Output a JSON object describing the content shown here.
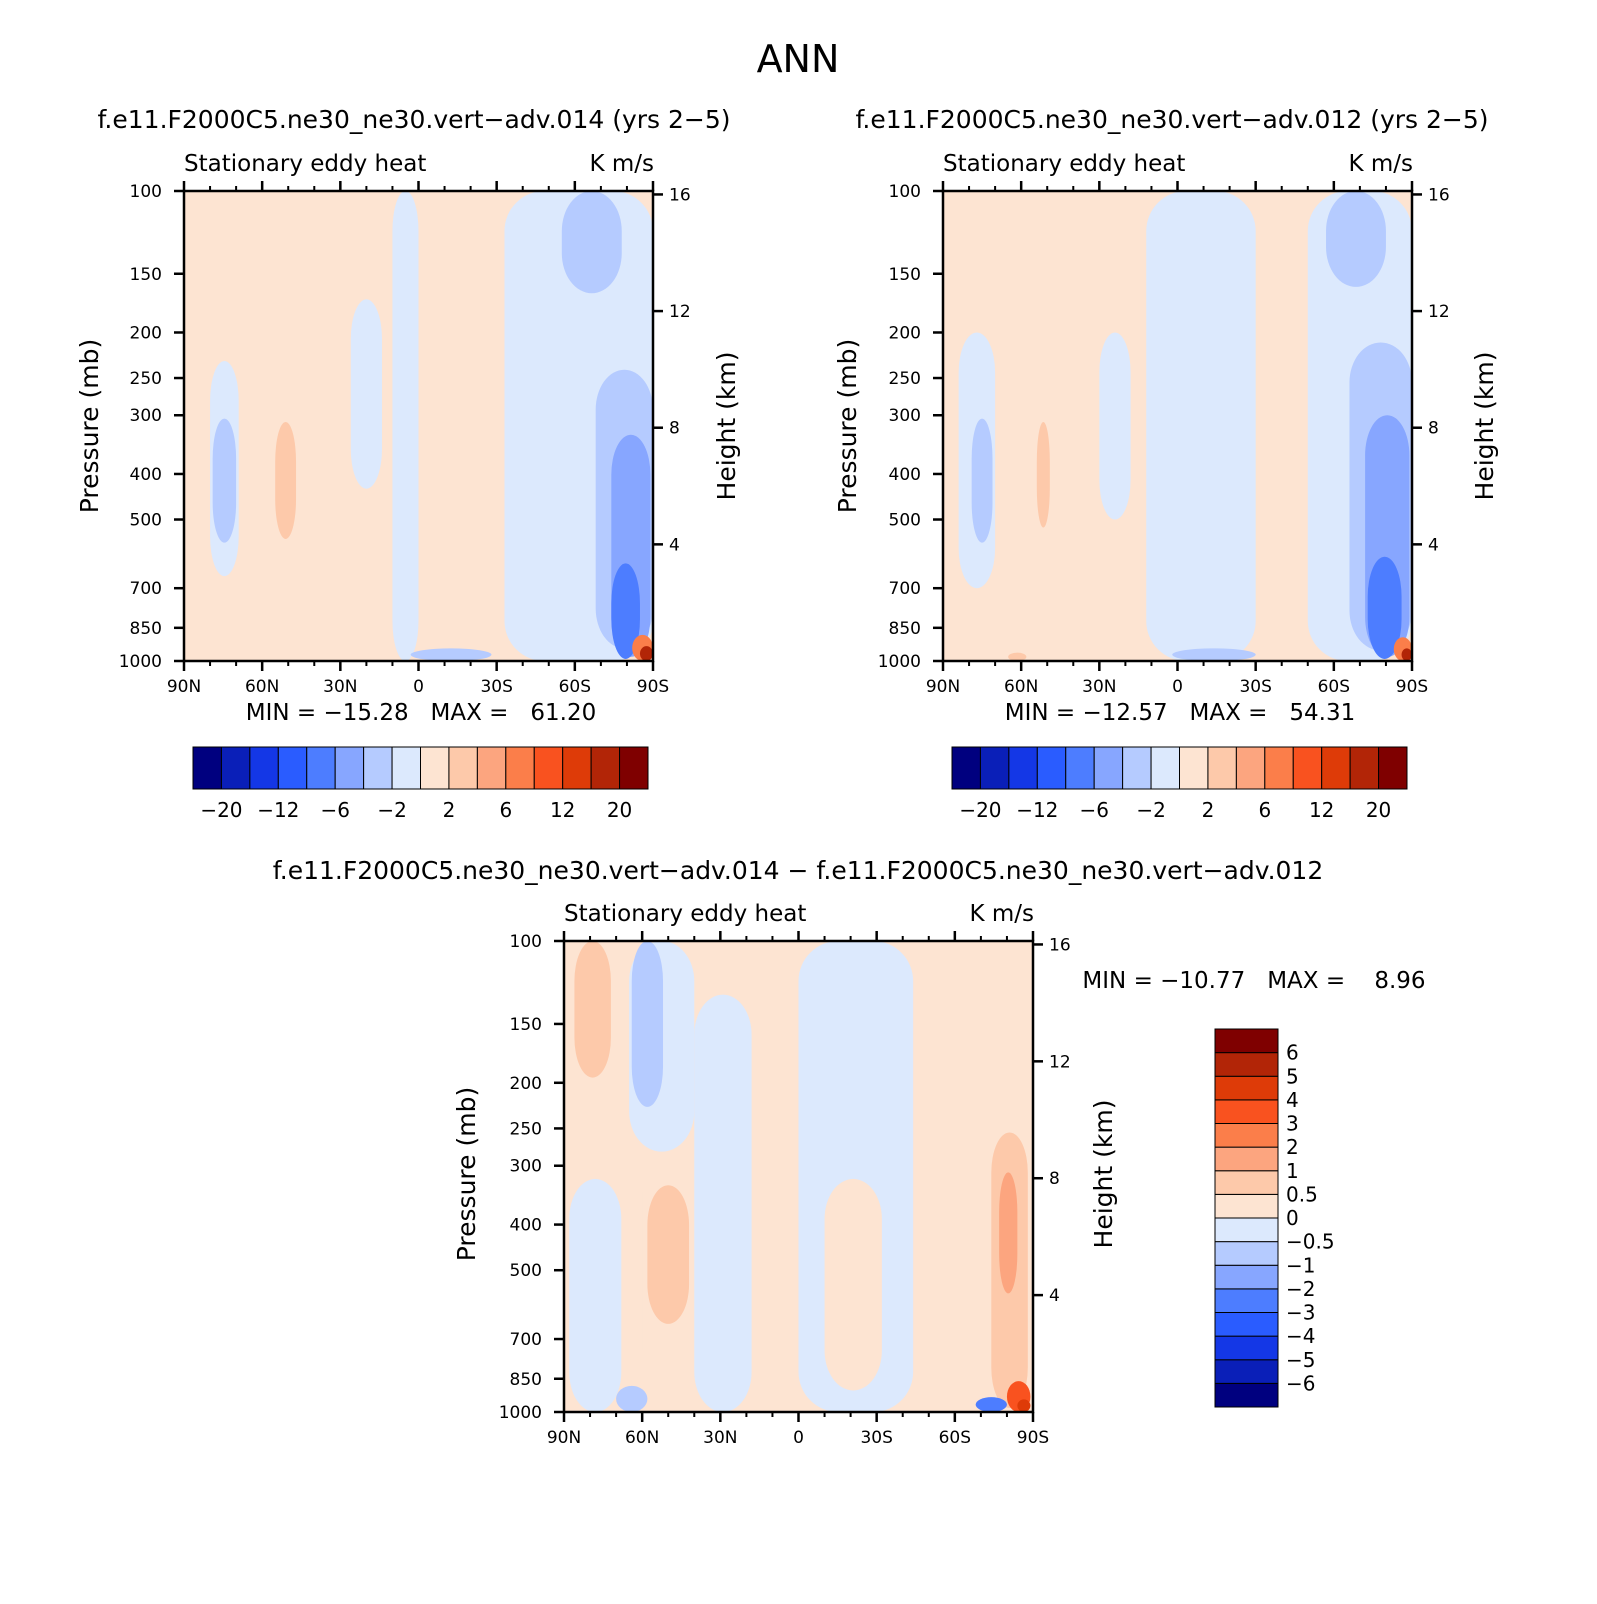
{
  "figure": {
    "title": "ANN"
  },
  "chart_data": [
    {
      "type": "heatmap",
      "title": "f.e11.F2000C5.ne30_ne30.vert−adv.014 (yrs 2−5)",
      "left_string": "Stationary eddy heat",
      "right_string": "K m/s",
      "xlabel": "",
      "ylabel": "Pressure (mb)",
      "y2label": "Height (km)",
      "x_ticks": [
        "90N",
        "60N",
        "30N",
        "0",
        "30S",
        "60S",
        "90S"
      ],
      "y_ticks": [
        "100",
        "150",
        "200",
        "250",
        "300",
        "400",
        "500",
        "700",
        "850",
        "1000"
      ],
      "y_tick_values": [
        100,
        150,
        200,
        250,
        300,
        400,
        500,
        700,
        850,
        1000
      ],
      "y2_ticks": [
        "16",
        "12",
        "8",
        "4"
      ],
      "y2_tick_values": [
        16,
        12,
        8,
        4
      ],
      "ylim": [
        1000,
        100
      ],
      "xlim": [
        90,
        -90
      ],
      "stats": "MIN = −15.28   MAX =   61.20",
      "min": -15.28,
      "max": 61.2,
      "colorbar": {
        "orientation": "horizontal",
        "labels": [
          "−20",
          "−12",
          "−6",
          "−2",
          "2",
          "6",
          "12",
          "20"
        ],
        "levels": [
          -20,
          -16,
          -12,
          -8,
          -6,
          -4,
          -2,
          -1,
          1,
          2,
          4,
          6,
          8,
          12,
          16,
          20
        ],
        "colors": [
          "#00007f",
          "#0a1fb8",
          "#1437e6",
          "#2a5cff",
          "#4d7dff",
          "#87a6ff",
          "#b5cbff",
          "#dce9fd",
          "#fde4d2",
          "#fdc9aa",
          "#fca57f",
          "#fb7e4a",
          "#f9521f",
          "#de3b08",
          "#b22507",
          "#7f0000"
        ]
      },
      "features": [
        {
          "kind": "pos",
          "level": 1,
          "lat1": 72,
          "lat2": 66,
          "p1": 100,
          "p2": 1000
        },
        {
          "kind": "pos",
          "level": 1,
          "lat1": 62,
          "lat2": 40,
          "p1": 200,
          "p2": 1000
        },
        {
          "kind": "pos",
          "level": 2,
          "lat1": 55,
          "lat2": 47,
          "p1": 310,
          "p2": 550
        },
        {
          "kind": "pos",
          "level": 1,
          "lat1": 32,
          "lat2": 28,
          "p1": 155,
          "p2": 180
        },
        {
          "kind": "neg",
          "level": 1,
          "lat1": 80,
          "lat2": 69,
          "p1": 230,
          "p2": 660
        },
        {
          "kind": "neg",
          "level": 2,
          "lat1": 79,
          "lat2": 70,
          "p1": 305,
          "p2": 560
        },
        {
          "kind": "neg",
          "level": 1,
          "lat1": 10,
          "lat2": 0,
          "p1": 100,
          "p2": 1000
        },
        {
          "kind": "neg",
          "level": 1,
          "lat1": 26,
          "lat2": 14,
          "p1": 170,
          "p2": 430
        },
        {
          "kind": "neg",
          "level": 1,
          "lat1": -33,
          "lat2": -90,
          "p1": 100,
          "p2": 1000
        },
        {
          "kind": "neg",
          "level": 2,
          "lat1": -55,
          "lat2": -78,
          "p1": 100,
          "p2": 165
        },
        {
          "kind": "neg",
          "level": 2,
          "lat1": -68,
          "lat2": -90,
          "p1": 240,
          "p2": 940
        },
        {
          "kind": "neg",
          "level": 3,
          "lat1": -74,
          "lat2": -89,
          "p1": 330,
          "p2": 980
        },
        {
          "kind": "neg",
          "level": 4,
          "lat1": -74,
          "lat2": -85,
          "p1": 620,
          "p2": 990
        },
        {
          "kind": "neg",
          "level": 2,
          "lat1": 3,
          "lat2": -28,
          "p1": 940,
          "p2": 1000
        },
        {
          "kind": "pos",
          "level": 4,
          "lat1": -82,
          "lat2": -90,
          "p1": 880,
          "p2": 1000
        },
        {
          "kind": "pos",
          "level": 7,
          "lat1": -85,
          "lat2": -90,
          "p1": 930,
          "p2": 1000
        }
      ]
    },
    {
      "type": "heatmap",
      "title": "f.e11.F2000C5.ne30_ne30.vert−adv.012 (yrs 2−5)",
      "left_string": "Stationary eddy heat",
      "right_string": "K m/s",
      "xlabel": "",
      "ylabel": "Pressure (mb)",
      "y2label": "Height (km)",
      "x_ticks": [
        "90N",
        "60N",
        "30N",
        "0",
        "30S",
        "60S",
        "90S"
      ],
      "y_ticks": [
        "100",
        "150",
        "200",
        "250",
        "300",
        "400",
        "500",
        "700",
        "850",
        "1000"
      ],
      "y_tick_values": [
        100,
        150,
        200,
        250,
        300,
        400,
        500,
        700,
        850,
        1000
      ],
      "y2_ticks": [
        "16",
        "12",
        "8",
        "4"
      ],
      "y2_tick_values": [
        16,
        12,
        8,
        4
      ],
      "ylim": [
        1000,
        100
      ],
      "xlim": [
        90,
        -90
      ],
      "stats": "MIN = −12.57   MAX =   54.31",
      "min": -12.57,
      "max": 54.31,
      "colorbar": {
        "orientation": "horizontal",
        "labels": [
          "−20",
          "−12",
          "−6",
          "−2",
          "2",
          "6",
          "12",
          "20"
        ],
        "levels": [
          -20,
          -16,
          -12,
          -8,
          -6,
          -4,
          -2,
          -1,
          1,
          2,
          4,
          6,
          8,
          12,
          16,
          20
        ],
        "colors": [
          "#00007f",
          "#0a1fb8",
          "#1437e6",
          "#2a5cff",
          "#4d7dff",
          "#87a6ff",
          "#b5cbff",
          "#dce9fd",
          "#fde4d2",
          "#fdc9aa",
          "#fca57f",
          "#fb7e4a",
          "#f9521f",
          "#de3b08",
          "#b22507",
          "#7f0000"
        ]
      },
      "features": [
        {
          "kind": "pos",
          "level": 1,
          "lat1": 73,
          "lat2": 66,
          "p1": 100,
          "p2": 1000
        },
        {
          "kind": "pos",
          "level": 1,
          "lat1": 62,
          "lat2": 42,
          "p1": 170,
          "p2": 1000
        },
        {
          "kind": "pos",
          "level": 2,
          "lat1": 54,
          "lat2": 49,
          "p1": 310,
          "p2": 520
        },
        {
          "kind": "pos",
          "level": 1,
          "lat1": 32,
          "lat2": 28,
          "p1": 155,
          "p2": 190
        },
        {
          "kind": "neg",
          "level": 1,
          "lat1": 84,
          "lat2": 70,
          "p1": 200,
          "p2": 700
        },
        {
          "kind": "neg",
          "level": 2,
          "lat1": 79,
          "lat2": 71,
          "p1": 305,
          "p2": 560
        },
        {
          "kind": "neg",
          "level": 1,
          "lat1": 30,
          "lat2": 18,
          "p1": 200,
          "p2": 500
        },
        {
          "kind": "neg",
          "level": 1,
          "lat1": 12,
          "lat2": -30,
          "p1": 100,
          "p2": 1000
        },
        {
          "kind": "neg",
          "level": 1,
          "lat1": -50,
          "lat2": -90,
          "p1": 100,
          "p2": 1000
        },
        {
          "kind": "neg",
          "level": 2,
          "lat1": -57,
          "lat2": -80,
          "p1": 100,
          "p2": 160
        },
        {
          "kind": "neg",
          "level": 2,
          "lat1": -66,
          "lat2": -90,
          "p1": 210,
          "p2": 950
        },
        {
          "kind": "neg",
          "level": 3,
          "lat1": -72,
          "lat2": -89,
          "p1": 300,
          "p2": 980
        },
        {
          "kind": "neg",
          "level": 4,
          "lat1": -73,
          "lat2": -86,
          "p1": 600,
          "p2": 990
        },
        {
          "kind": "neg",
          "level": 2,
          "lat1": 2,
          "lat2": -30,
          "p1": 940,
          "p2": 1000
        },
        {
          "kind": "pos",
          "level": 2,
          "lat1": 65,
          "lat2": 58,
          "p1": 960,
          "p2": 1000
        },
        {
          "kind": "pos",
          "level": 4,
          "lat1": -83,
          "lat2": -90,
          "p1": 890,
          "p2": 1000
        },
        {
          "kind": "pos",
          "level": 7,
          "lat1": -86,
          "lat2": -90,
          "p1": 940,
          "p2": 1000
        }
      ]
    },
    {
      "type": "heatmap",
      "title": "f.e11.F2000C5.ne30_ne30.vert−adv.014 − f.e11.F2000C5.ne30_ne30.vert−adv.012",
      "left_string": "Stationary eddy heat",
      "right_string": "K m/s",
      "xlabel": "",
      "ylabel": "Pressure (mb)",
      "y2label": "Height (km)",
      "x_ticks": [
        "90N",
        "60N",
        "30N",
        "0",
        "30S",
        "60S",
        "90S"
      ],
      "y_ticks": [
        "100",
        "150",
        "200",
        "250",
        "300",
        "400",
        "500",
        "700",
        "850",
        "1000"
      ],
      "y_tick_values": [
        100,
        150,
        200,
        250,
        300,
        400,
        500,
        700,
        850,
        1000
      ],
      "y2_ticks": [
        "16",
        "12",
        "8",
        "4"
      ],
      "y2_tick_values": [
        16,
        12,
        8,
        4
      ],
      "ylim": [
        1000,
        100
      ],
      "xlim": [
        90,
        -90
      ],
      "stats": "MIN = −10.77   MAX =    8.96",
      "min": -10.77,
      "max": 8.96,
      "colorbar": {
        "orientation": "vertical",
        "labels": [
          "−6",
          "−5",
          "−4",
          "−3",
          "−2",
          "−1",
          "−0.5",
          "0",
          "0.5",
          "1",
          "2",
          "3",
          "4",
          "5",
          "6"
        ],
        "levels": [
          -6,
          -5,
          -4,
          -3,
          -2,
          -1,
          -0.5,
          0,
          0.5,
          1,
          2,
          3,
          4,
          5,
          6
        ],
        "colors": [
          "#00007f",
          "#0a1fb8",
          "#1437e6",
          "#2a5cff",
          "#4d7dff",
          "#87a6ff",
          "#b5cbff",
          "#dce9fd",
          "#fde4d2",
          "#fdc9aa",
          "#fca57f",
          "#fb7e4a",
          "#f9521f",
          "#de3b08",
          "#b22507",
          "#7f0000"
        ]
      },
      "features": [
        {
          "kind": "pos",
          "level": 1,
          "lat1": 90,
          "lat2": 66,
          "p1": 100,
          "p2": 1000
        },
        {
          "kind": "pos",
          "level": 2,
          "lat1": 86,
          "lat2": 72,
          "p1": 100,
          "p2": 195
        },
        {
          "kind": "neg",
          "level": 1,
          "lat1": 65,
          "lat2": 40,
          "p1": 100,
          "p2": 280
        },
        {
          "kind": "neg",
          "level": 2,
          "lat1": 64,
          "lat2": 52,
          "p1": 100,
          "p2": 225
        },
        {
          "kind": "neg",
          "level": 1,
          "lat1": 88,
          "lat2": 68,
          "p1": 320,
          "p2": 1000
        },
        {
          "kind": "pos",
          "level": 1,
          "lat1": 60,
          "lat2": 38,
          "p1": 280,
          "p2": 900
        },
        {
          "kind": "pos",
          "level": 2,
          "lat1": 58,
          "lat2": 42,
          "p1": 330,
          "p2": 650
        },
        {
          "kind": "neg",
          "level": 1,
          "lat1": 40,
          "lat2": 18,
          "p1": 130,
          "p2": 1000
        },
        {
          "kind": "neg",
          "level": 2,
          "lat1": 70,
          "lat2": 58,
          "p1": 880,
          "p2": 1000
        },
        {
          "kind": "neg",
          "level": 1,
          "lat1": 0,
          "lat2": -44,
          "p1": 100,
          "p2": 1000
        },
        {
          "kind": "pos",
          "level": 1,
          "lat1": -10,
          "lat2": -32,
          "p1": 320,
          "p2": 900
        },
        {
          "kind": "pos",
          "level": 1,
          "lat1": -77,
          "lat2": -90,
          "p1": 100,
          "p2": 1000
        },
        {
          "kind": "pos",
          "level": 2,
          "lat1": -74,
          "lat2": -88,
          "p1": 255,
          "p2": 980
        },
        {
          "kind": "pos",
          "level": 3,
          "lat1": -77,
          "lat2": -84,
          "p1": 310,
          "p2": 560
        },
        {
          "kind": "neg",
          "level": 4,
          "lat1": -68,
          "lat2": -80,
          "p1": 930,
          "p2": 1000
        },
        {
          "kind": "pos",
          "level": 5,
          "lat1": -80,
          "lat2": -89,
          "p1": 860,
          "p2": 1000
        },
        {
          "kind": "pos",
          "level": 6,
          "lat1": -84,
          "lat2": -89,
          "p1": 940,
          "p2": 1000
        }
      ]
    }
  ]
}
